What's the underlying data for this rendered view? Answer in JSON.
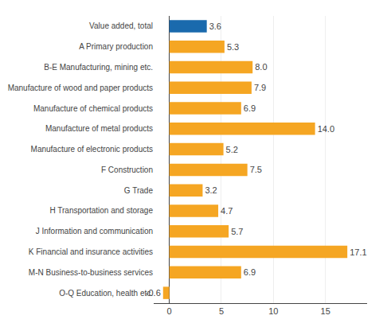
{
  "chart_data": {
    "type": "bar",
    "orientation": "horizontal",
    "categories": [
      "Value added, total",
      "A Primary production",
      "B-E Manufacturing, mining etc.",
      "Manufacture of wood and paper products",
      "Manufacture of chemical products",
      "Manufacture of metal products",
      "Manufacture of electronic products",
      "F Construction",
      "G Trade",
      "H Transportation and storage",
      "J Information and communication",
      "K Financial and insurance activities",
      "M-N Business-to-business services",
      "O-Q Education, health etc."
    ],
    "values": [
      3.6,
      5.3,
      8.0,
      7.9,
      6.9,
      14.0,
      5.2,
      7.5,
      3.2,
      4.7,
      5.7,
      17.1,
      6.9,
      -0.6
    ],
    "value_labels": [
      "3.6",
      "5.3",
      "8.0",
      "7.9",
      "6.9",
      "14.0",
      "5.2",
      "7.5",
      "3.2",
      "4.7",
      "5.7",
      "17.1",
      "6.9",
      "-0.6"
    ],
    "colors": [
      "#1a6aad",
      "#f5a623",
      "#f5a623",
      "#f5a623",
      "#f5a623",
      "#f5a623",
      "#f5a623",
      "#f5a623",
      "#f5a623",
      "#f5a623",
      "#f5a623",
      "#f5a623",
      "#f5a623",
      "#f5a623"
    ],
    "xlim": [
      -1.5,
      19
    ],
    "xticks": [
      0,
      5,
      10,
      15
    ],
    "grid": true,
    "data_labels": true
  }
}
